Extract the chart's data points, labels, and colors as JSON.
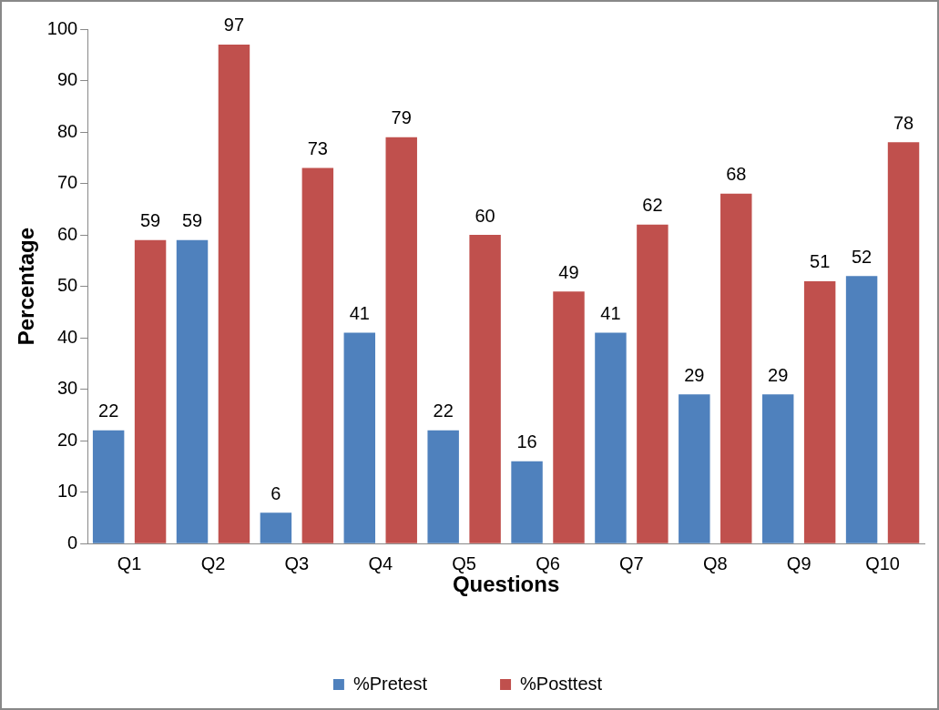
{
  "chart_data": {
    "type": "bar",
    "xlabel": "Questions",
    "ylabel": "Percentage",
    "categories": [
      "Q1",
      "Q2",
      "Q3",
      "Q4",
      "Q5",
      "Q6",
      "Q7",
      "Q8",
      "Q9",
      "Q10"
    ],
    "series": [
      {
        "name": "%Pretest",
        "color": "#4f81bd",
        "values": [
          22,
          59,
          6,
          41,
          22,
          16,
          41,
          29,
          29,
          52
        ]
      },
      {
        "name": "%Posttest",
        "color": "#c0504d",
        "values": [
          59,
          97,
          73,
          79,
          60,
          49,
          62,
          68,
          51,
          78
        ]
      }
    ],
    "ylim": [
      0,
      100
    ],
    "yticks": [
      0,
      10,
      20,
      30,
      40,
      50,
      60,
      70,
      80,
      90,
      100
    ],
    "grid": false,
    "legend": "bottom",
    "data_labels": true
  }
}
